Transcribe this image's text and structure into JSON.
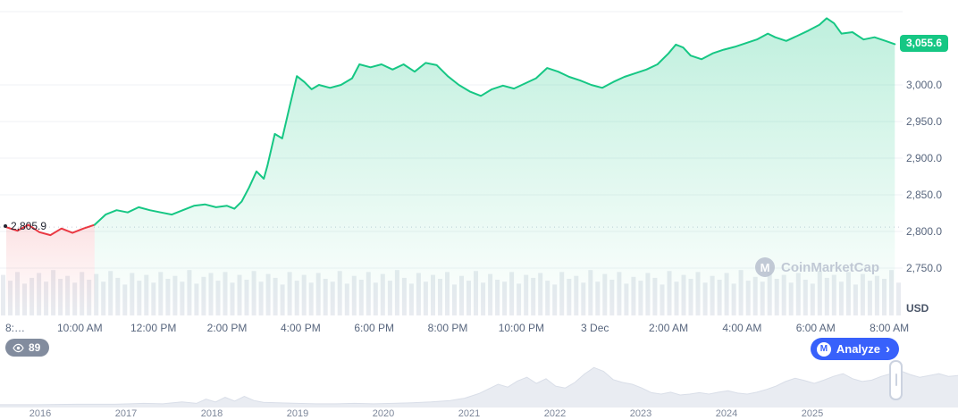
{
  "chart_data": [
    {
      "type": "area",
      "name": "price-24h",
      "x_unit": "hours-from-8am",
      "x_first_label_clipped": "8:…",
      "x_ticks": [
        {
          "t": 2,
          "label": "10:00 AM"
        },
        {
          "t": 4,
          "label": "12:00 PM"
        },
        {
          "t": 6,
          "label": "2:00 PM"
        },
        {
          "t": 8,
          "label": "4:00 PM"
        },
        {
          "t": 10,
          "label": "6:00 PM"
        },
        {
          "t": 12,
          "label": "8:00 PM"
        },
        {
          "t": 14,
          "label": "10:00 PM"
        },
        {
          "t": 16,
          "label": "3 Dec"
        },
        {
          "t": 18,
          "label": "2:00 AM"
        },
        {
          "t": 20,
          "label": "4:00 AM"
        },
        {
          "t": 22,
          "label": "6:00 AM"
        },
        {
          "t": 24,
          "label": "8:00 AM"
        }
      ],
      "y_ticks": [
        {
          "price": 3100,
          "label": ""
        },
        {
          "price": 3000,
          "label": "3,000.0"
        },
        {
          "price": 2950,
          "label": "2,950.0"
        },
        {
          "price": 2900,
          "label": "2,900.0"
        },
        {
          "price": 2850,
          "label": "2,850.0"
        },
        {
          "price": 2800,
          "label": "2,800.0"
        },
        {
          "price": 2750,
          "label": "2,750.0"
        }
      ],
      "y_unit_label": "USD",
      "current_price": 3055.6,
      "current_price_label": "3,055.6",
      "open_price": 2805.9,
      "open_price_label": "2,805.9",
      "red_end_index": 8,
      "points": [
        [
          0,
          2805.9
        ],
        [
          0.3,
          2801
        ],
        [
          0.6,
          2809
        ],
        [
          0.9,
          2799
        ],
        [
          1.2,
          2795
        ],
        [
          1.5,
          2804
        ],
        [
          1.8,
          2798
        ],
        [
          2.1,
          2804
        ],
        [
          2.4,
          2809
        ],
        [
          2.7,
          2823
        ],
        [
          3.0,
          2829
        ],
        [
          3.3,
          2826
        ],
        [
          3.6,
          2833
        ],
        [
          3.9,
          2829
        ],
        [
          4.2,
          2826
        ],
        [
          4.5,
          2823
        ],
        [
          4.8,
          2829
        ],
        [
          5.1,
          2835
        ],
        [
          5.4,
          2837
        ],
        [
          5.7,
          2833
        ],
        [
          6.0,
          2835
        ],
        [
          6.2,
          2831
        ],
        [
          6.4,
          2841
        ],
        [
          6.6,
          2860
        ],
        [
          6.8,
          2882
        ],
        [
          7.0,
          2872
        ],
        [
          7.1,
          2890
        ],
        [
          7.3,
          2933
        ],
        [
          7.5,
          2927
        ],
        [
          7.7,
          2970
        ],
        [
          7.9,
          3012
        ],
        [
          8.1,
          3004
        ],
        [
          8.3,
          2994
        ],
        [
          8.5,
          3000
        ],
        [
          8.8,
          2996
        ],
        [
          9.1,
          3000
        ],
        [
          9.4,
          3009
        ],
        [
          9.6,
          3028
        ],
        [
          9.9,
          3024
        ],
        [
          10.2,
          3028
        ],
        [
          10.5,
          3021
        ],
        [
          10.8,
          3028
        ],
        [
          11.1,
          3018
        ],
        [
          11.4,
          3030
        ],
        [
          11.7,
          3027
        ],
        [
          12.0,
          3012
        ],
        [
          12.3,
          3000
        ],
        [
          12.6,
          2991
        ],
        [
          12.9,
          2985
        ],
        [
          13.2,
          2994
        ],
        [
          13.5,
          2999
        ],
        [
          13.8,
          2995
        ],
        [
          14.1,
          3002
        ],
        [
          14.4,
          3009
        ],
        [
          14.7,
          3023
        ],
        [
          15.0,
          3018
        ],
        [
          15.3,
          3011
        ],
        [
          15.6,
          3006
        ],
        [
          15.9,
          3000
        ],
        [
          16.2,
          2996
        ],
        [
          16.5,
          3004
        ],
        [
          16.8,
          3011
        ],
        [
          17.1,
          3016
        ],
        [
          17.4,
          3021
        ],
        [
          17.7,
          3028
        ],
        [
          18.0,
          3043
        ],
        [
          18.2,
          3055
        ],
        [
          18.4,
          3051
        ],
        [
          18.6,
          3040
        ],
        [
          18.9,
          3035
        ],
        [
          19.2,
          3043
        ],
        [
          19.5,
          3048
        ],
        [
          19.8,
          3052
        ],
        [
          20.1,
          3057
        ],
        [
          20.4,
          3062
        ],
        [
          20.7,
          3070
        ],
        [
          20.9,
          3065
        ],
        [
          21.2,
          3060
        ],
        [
          21.5,
          3067
        ],
        [
          21.8,
          3074
        ],
        [
          22.1,
          3082
        ],
        [
          22.3,
          3091
        ],
        [
          22.5,
          3084
        ],
        [
          22.7,
          3070
        ],
        [
          23.0,
          3072
        ],
        [
          23.3,
          3062
        ],
        [
          23.6,
          3065
        ],
        [
          23.9,
          3060
        ],
        [
          24.15,
          3055.6
        ]
      ],
      "volume_bars": [
        0.84,
        0.72,
        0.9,
        0.66,
        0.78,
        0.88,
        0.7,
        0.94,
        0.76,
        0.82,
        0.68,
        0.9,
        0.74,
        0.86,
        0.7,
        0.92,
        0.78,
        0.64,
        0.88,
        0.72,
        0.84,
        0.68,
        0.9,
        0.76,
        0.82,
        0.7,
        0.94,
        0.66,
        0.8,
        0.88,
        0.72,
        0.9,
        0.68,
        0.84,
        0.74,
        0.92,
        0.7,
        0.86,
        0.78,
        0.64,
        0.9,
        0.72,
        0.84,
        0.68,
        0.88,
        0.76,
        0.7,
        0.92,
        0.66,
        0.82,
        0.74,
        0.9,
        0.68,
        0.86,
        0.72,
        0.94,
        0.78,
        0.66,
        0.88,
        0.7,
        0.84,
        0.76,
        0.9,
        0.64,
        0.82,
        0.72,
        0.92,
        0.68,
        0.86,
        0.74,
        0.7,
        0.9,
        0.66,
        0.84,
        0.78,
        0.88,
        0.72,
        0.64,
        0.9,
        0.76,
        0.82,
        0.68,
        0.94,
        0.7,
        0.86,
        0.74,
        0.9,
        0.66,
        0.8,
        0.72,
        0.88,
        0.78,
        0.64,
        0.92,
        0.7,
        0.84,
        0.76,
        0.9,
        0.68,
        0.82,
        0.74,
        0.88,
        0.66,
        0.94,
        0.72,
        0.8,
        0.7,
        0.9,
        0.76,
        0.84,
        0.68,
        0.88,
        0.74,
        0.66,
        0.92,
        0.78,
        0.84,
        0.7,
        0.9,
        0.64,
        0.86,
        0.72,
        0.82,
        0.76,
        0.94,
        0.68
      ],
      "colors": {
        "up": "#16c784",
        "down": "#ea3943",
        "grid": "#eff2f5",
        "volume": "#e8ebf0",
        "axis_text": "#58667e",
        "open_line": "#c8cfdb"
      }
    },
    {
      "type": "area",
      "name": "history-timeline",
      "years": [
        "2016",
        "2017",
        "2018",
        "2019",
        "2020",
        "2021",
        "2022",
        "2023",
        "2024",
        "2025"
      ],
      "fill": "#e9ecf2",
      "stroke": "#d9dee8",
      "points": [
        [
          0,
          0.04
        ],
        [
          0.04,
          0.04
        ],
        [
          0.08,
          0.05
        ],
        [
          0.12,
          0.05
        ],
        [
          0.15,
          0.07
        ],
        [
          0.17,
          0.06
        ],
        [
          0.19,
          0.1
        ],
        [
          0.205,
          0.07
        ],
        [
          0.215,
          0.16
        ],
        [
          0.225,
          0.1
        ],
        [
          0.235,
          0.2
        ],
        [
          0.245,
          0.12
        ],
        [
          0.255,
          0.22
        ],
        [
          0.265,
          0.13
        ],
        [
          0.275,
          0.09
        ],
        [
          0.29,
          0.08
        ],
        [
          0.31,
          0.07
        ],
        [
          0.33,
          0.06
        ],
        [
          0.35,
          0.06
        ],
        [
          0.37,
          0.07
        ],
        [
          0.39,
          0.06
        ],
        [
          0.41,
          0.07
        ],
        [
          0.43,
          0.08
        ],
        [
          0.45,
          0.1
        ],
        [
          0.47,
          0.13
        ],
        [
          0.485,
          0.18
        ],
        [
          0.5,
          0.28
        ],
        [
          0.51,
          0.38
        ],
        [
          0.52,
          0.48
        ],
        [
          0.53,
          0.42
        ],
        [
          0.54,
          0.55
        ],
        [
          0.55,
          0.63
        ],
        [
          0.56,
          0.5
        ],
        [
          0.57,
          0.6
        ],
        [
          0.58,
          0.44
        ],
        [
          0.59,
          0.4
        ],
        [
          0.6,
          0.52
        ],
        [
          0.61,
          0.7
        ],
        [
          0.62,
          0.84
        ],
        [
          0.63,
          0.76
        ],
        [
          0.64,
          0.58
        ],
        [
          0.65,
          0.52
        ],
        [
          0.66,
          0.48
        ],
        [
          0.67,
          0.4
        ],
        [
          0.68,
          0.3
        ],
        [
          0.69,
          0.27
        ],
        [
          0.7,
          0.31
        ],
        [
          0.71,
          0.25
        ],
        [
          0.72,
          0.27
        ],
        [
          0.73,
          0.3
        ],
        [
          0.74,
          0.27
        ],
        [
          0.75,
          0.31
        ],
        [
          0.76,
          0.34
        ],
        [
          0.77,
          0.29
        ],
        [
          0.78,
          0.27
        ],
        [
          0.79,
          0.31
        ],
        [
          0.8,
          0.37
        ],
        [
          0.81,
          0.44
        ],
        [
          0.82,
          0.54
        ],
        [
          0.83,
          0.61
        ],
        [
          0.84,
          0.56
        ],
        [
          0.85,
          0.5
        ],
        [
          0.86,
          0.57
        ],
        [
          0.87,
          0.65
        ],
        [
          0.88,
          0.71
        ],
        [
          0.89,
          0.6
        ],
        [
          0.9,
          0.54
        ],
        [
          0.91,
          0.57
        ],
        [
          0.92,
          0.65
        ],
        [
          0.93,
          0.71
        ],
        [
          0.94,
          0.77
        ],
        [
          0.95,
          0.69
        ],
        [
          0.96,
          0.63
        ],
        [
          0.97,
          0.67
        ],
        [
          0.98,
          0.71
        ],
        [
          0.99,
          0.65
        ],
        [
          1.0,
          0.67
        ]
      ]
    }
  ],
  "watermark": {
    "text": "CoinMarketCap",
    "logo_letter": "M"
  },
  "controls": {
    "history_count": "89",
    "analyze_label": "Analyze",
    "analyze_chevron": "›",
    "analyze_logo_letter": "M",
    "accent_blue": "#3861fb"
  }
}
